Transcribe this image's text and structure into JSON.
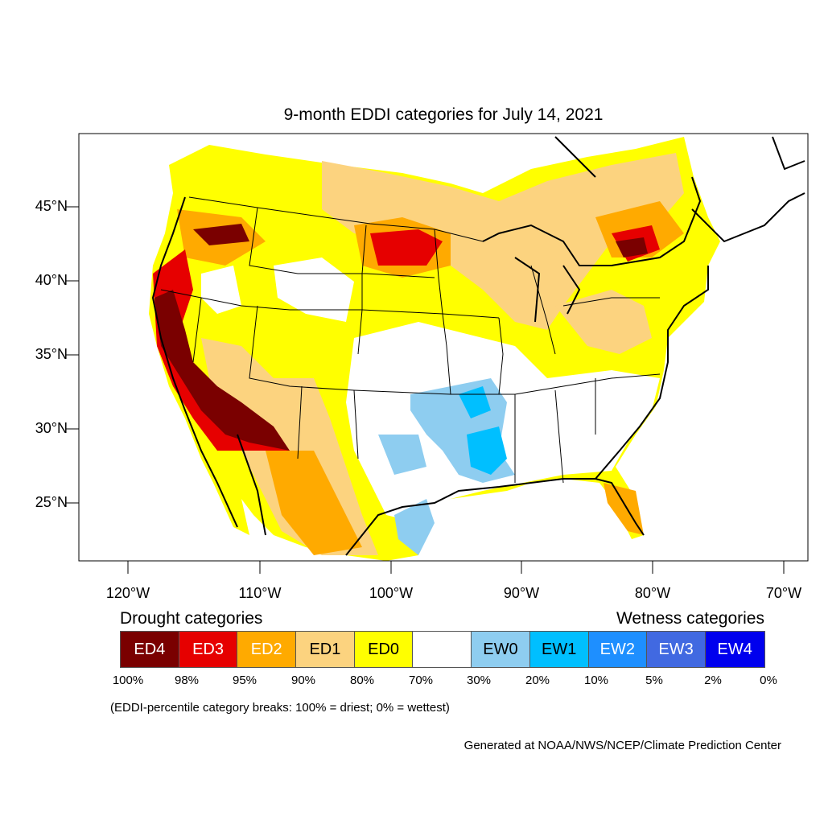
{
  "title": "9-month EDDI categories for July 14, 2021",
  "lon_labels": [
    "120°W",
    "110°W",
    "100°W",
    "90°W",
    "80°W",
    "70°W"
  ],
  "lat_labels": [
    "45°N",
    "40°N",
    "35°N",
    "30°N",
    "25°N"
  ],
  "legend": {
    "drought_heading": "Drought categories",
    "wetness_heading": "Wetness categories",
    "categories": [
      {
        "label": "ED4",
        "color": "#7a0000",
        "text_color": "#ffffff"
      },
      {
        "label": "ED3",
        "color": "#e60000",
        "text_color": "#ffffff"
      },
      {
        "label": "ED2",
        "color": "#ffaa00",
        "text_color": "#ffffff"
      },
      {
        "label": "ED1",
        "color": "#fcd37f",
        "text_color": "#000000"
      },
      {
        "label": "ED0",
        "color": "#ffff00",
        "text_color": "#000000"
      },
      {
        "label": "",
        "color": "#ffffff",
        "text_color": "#000000"
      },
      {
        "label": "EW0",
        "color": "#8ecdf0",
        "text_color": "#000000"
      },
      {
        "label": "EW1",
        "color": "#00bfff",
        "text_color": "#000000"
      },
      {
        "label": "EW2",
        "color": "#1e8fff",
        "text_color": "#ffffff"
      },
      {
        "label": "EW3",
        "color": "#4169e1",
        "text_color": "#ffffff"
      },
      {
        "label": "EW4",
        "color": "#0000ee",
        "text_color": "#ffffff"
      }
    ],
    "percentiles": [
      "100%",
      "98%",
      "95%",
      "90%",
      "80%",
      "70%",
      "30%",
      "20%",
      "10%",
      "5%",
      "2%",
      "0%"
    ]
  },
  "note": "(EDDI-percentile category breaks: 100% = driest; 0% = wettest)",
  "credit": "Generated at NOAA/NWS/NCEP/Climate Prediction Center"
}
